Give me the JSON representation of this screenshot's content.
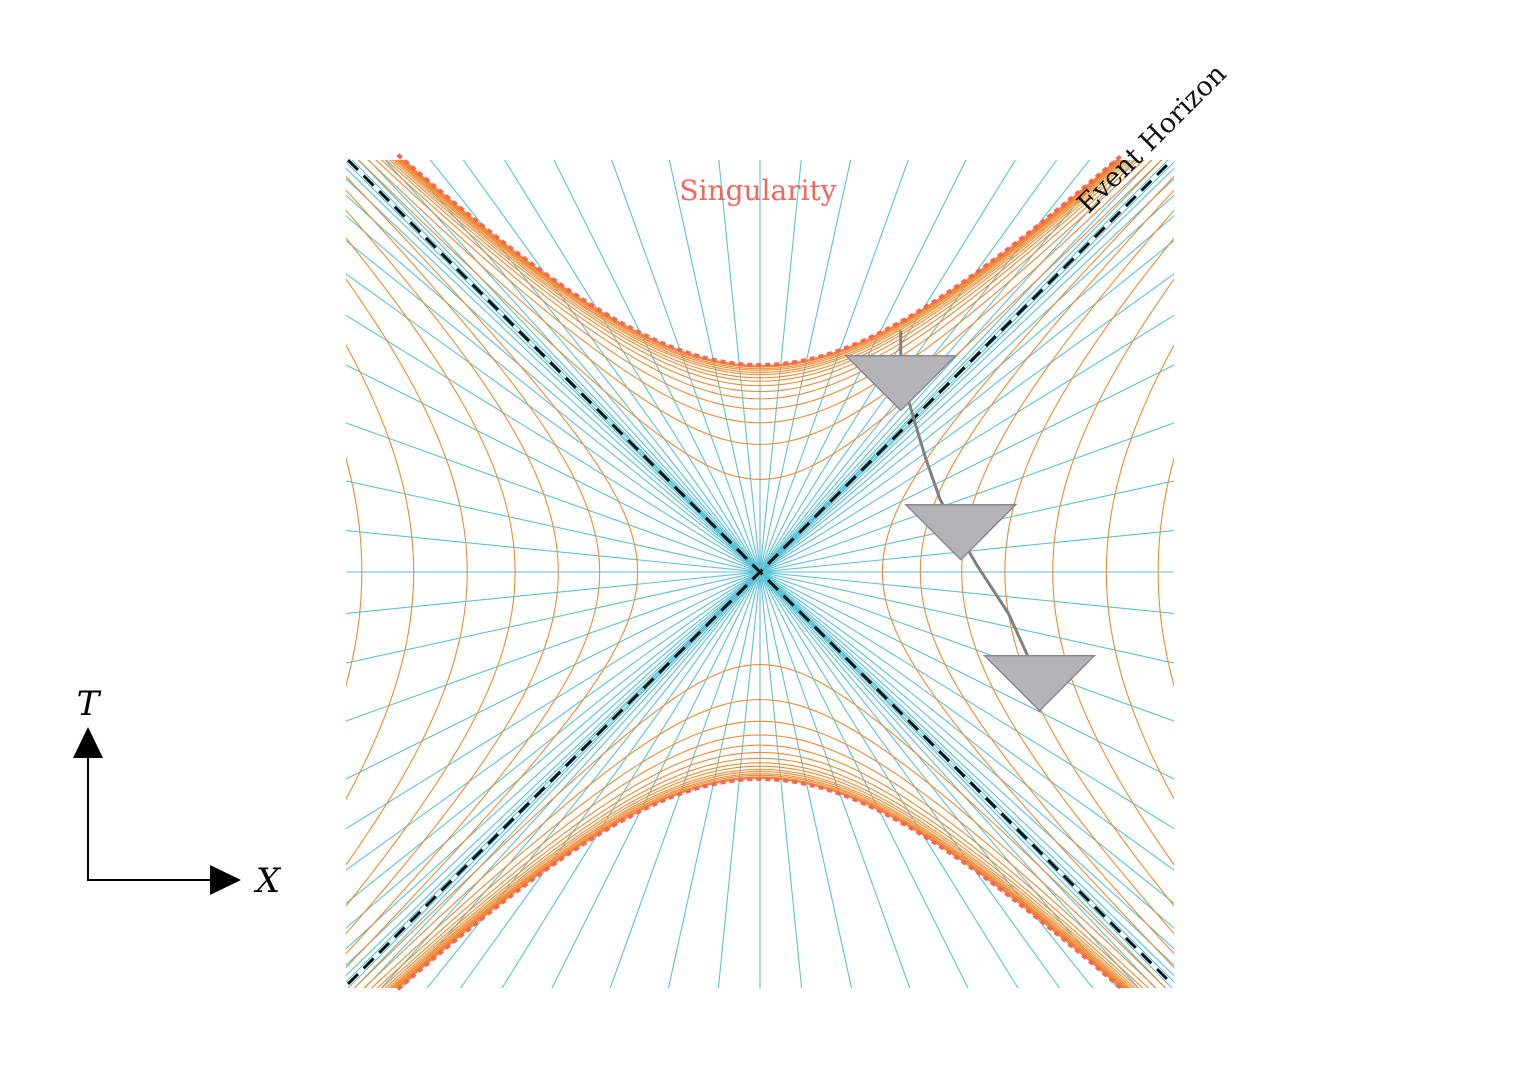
{
  "labels": {
    "singularity": "Singularity",
    "event_horizon": "Event Horizon",
    "axis_t": "T",
    "axis_x": "X"
  },
  "colors": {
    "singularity": "#f4665c",
    "r_curves": "#f28a30",
    "t_lines": "#5bc2d8",
    "horizon": "#111111",
    "light_cone_fill": "#b4b4b8",
    "light_cone_stroke": "#8a8794",
    "worldline": "#808080"
  },
  "diagram": {
    "coordinates": "Kruskal-Szekeres",
    "x_range": [
      -2,
      2
    ],
    "t_range": [
      -2,
      2
    ],
    "singularity_level": 1,
    "r_curve_levels_inside": [
      0.996,
      0.99,
      0.98,
      0.965,
      0.95,
      0.93,
      0.91,
      0.88,
      0.85,
      0.81,
      0.76,
      0.7,
      0.62,
      0.52,
      0.38,
      0.2
    ],
    "r_curve_levels_outside": [
      -0.35,
      -0.6,
      -0.95,
      -1.4,
      -2.0,
      -2.8,
      -3.7
    ],
    "t_line_slopes": [
      0,
      0.1,
      0.22,
      0.36,
      0.5,
      0.62,
      0.72,
      0.8,
      0.86,
      0.91,
      0.95,
      0.975,
      0.99
    ],
    "worldline": [
      [
        1.35,
        -0.67
      ],
      [
        1.34,
        -0.58
      ],
      [
        1.3,
        -0.42
      ],
      [
        1.2,
        -0.2
      ],
      [
        1.05,
        0.03
      ],
      [
        0.95,
        0.2
      ],
      [
        0.87,
        0.35
      ],
      [
        0.8,
        0.55
      ],
      [
        0.74,
        0.75
      ],
      [
        0.68,
        0.96
      ],
      [
        0.68,
        1.16
      ]
    ],
    "light_cones": [
      [
        1.35,
        -0.67
      ],
      [
        0.97,
        0.06
      ],
      [
        0.68,
        0.78
      ]
    ]
  }
}
